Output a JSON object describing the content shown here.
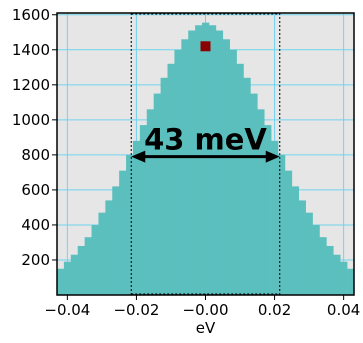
{
  "chart_data": {
    "type": "bar",
    "xlabel": "eV",
    "ylabel": "",
    "title": "",
    "xlim": [
      -0.043,
      0.043
    ],
    "ylim": [
      0,
      1610
    ],
    "xticks": [
      -0.04,
      -0.02,
      0.0,
      0.02,
      0.04
    ],
    "xtick_labels": [
      "−0.04",
      "−0.02",
      "−0.00",
      "0.02",
      "0.04"
    ],
    "yticks": [
      200,
      400,
      600,
      800,
      1000,
      1200,
      1400,
      1600
    ],
    "ytick_labels": [
      "200",
      "400",
      "600",
      "800",
      "1000",
      "1200",
      "1400",
      "1600"
    ],
    "grid": true,
    "bin_width": 0.002,
    "bin_centers": [
      -0.042,
      -0.04,
      -0.038,
      -0.036,
      -0.034,
      -0.032,
      -0.03,
      -0.028,
      -0.026,
      -0.024,
      -0.022,
      -0.02,
      -0.018,
      -0.016,
      -0.014,
      -0.012,
      -0.01,
      -0.008,
      -0.006,
      -0.004,
      -0.002,
      0.0,
      0.002,
      0.004,
      0.006,
      0.008,
      0.01,
      0.012,
      0.014,
      0.016,
      0.018,
      0.02,
      0.022,
      0.024,
      0.026,
      0.028,
      0.03,
      0.032,
      0.034,
      0.036,
      0.038,
      0.04,
      0.042
    ],
    "values": [
      150,
      190,
      230,
      280,
      330,
      400,
      470,
      540,
      620,
      710,
      800,
      880,
      970,
      1060,
      1150,
      1240,
      1320,
      1400,
      1460,
      1510,
      1540,
      1555,
      1540,
      1510,
      1460,
      1400,
      1320,
      1240,
      1150,
      1060,
      970,
      880,
      800,
      710,
      620,
      540,
      470,
      400,
      330,
      280,
      230,
      190,
      150
    ],
    "annotation": {
      "text": "43 meV",
      "fwhm_range": [
        -0.0215,
        0.0215
      ],
      "arrow_y": 790
    },
    "marker": {
      "x": 0.0,
      "y": 1420
    },
    "colors": {
      "bars": "#5bbfbe",
      "background": "#e6e6e6",
      "grid": "#6fd3ef",
      "marker": "#8b0000",
      "guide_lines": "#000000"
    }
  }
}
